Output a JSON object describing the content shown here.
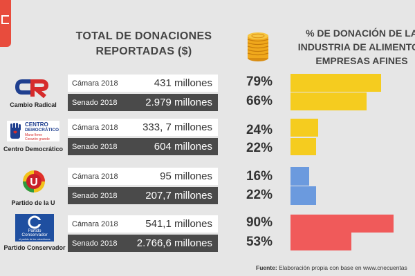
{
  "header": {
    "left_title_line1": "TOTAL DE DONACIONES",
    "left_title_line2": "REPORTADAS ($)",
    "right_title_line1": "% DE DONACIÓN DE LA",
    "right_title_line2": "INDUSTRIA DE ALIMENTOS",
    "right_title_line3": "EMPRESAS AFINES"
  },
  "parties": [
    {
      "name": "Cambio Radical",
      "logo_text": "CR"
    },
    {
      "name": "Centro Democrático",
      "logo_text1": "CENTRO",
      "logo_text2": "DEMOCRÁTICO",
      "logo_text3": "Mano firme",
      "logo_text4": "Corazón grande"
    },
    {
      "name": "Partido de la U",
      "logo_text": "U"
    },
    {
      "name": "Partido Conservador",
      "logo_text1": "Partido",
      "logo_text2": "Conservador",
      "logo_text3": "el partido de los colombianos"
    }
  ],
  "colors": {
    "yellow": "#f5cc1f",
    "blue": "#6b9ade",
    "red": "#f05a5a"
  },
  "chart_data": {
    "type": "bar",
    "orientation": "horizontal",
    "title": "% DE DONACIÓN DE LA INDUSTRIA DE ALIMENTOS EMPRESAS AFINES",
    "xlim": [
      0,
      100
    ],
    "rows": [
      {
        "party": "Cambio Radical",
        "chamber": "Cámara 2018",
        "amount": "431 millones",
        "pct": 79,
        "pct_label": "79%"
      },
      {
        "party": "Cambio Radical",
        "chamber": "Senado 2018",
        "amount": "2.979 millones",
        "pct": 66,
        "pct_label": "66%"
      },
      {
        "party": "Centro Democrático",
        "chamber": "Cámara 2018",
        "amount": "333, 7 millones",
        "pct": 24,
        "pct_label": "24%"
      },
      {
        "party": "Centro Democrático",
        "chamber": "Senado 2018",
        "amount": "604 millones",
        "pct": 22,
        "pct_label": "22%"
      },
      {
        "party": "Partido de la U",
        "chamber": "Cámara 2018",
        "amount": "95 millones",
        "pct": 16,
        "pct_label": "16%"
      },
      {
        "party": "Partido de la U",
        "chamber": "Senado 2018",
        "amount": "207,7 millones",
        "pct": 22,
        "pct_label": "22%"
      },
      {
        "party": "Partido Conservador",
        "chamber": "Cámara 2018",
        "amount": "541,1 millones",
        "pct": 90,
        "pct_label": "90%"
      },
      {
        "party": "Partido Conservador",
        "chamber": "Senado 2018",
        "amount": "2.766,6 millones",
        "pct": 53,
        "pct_label": "53%"
      }
    ]
  },
  "footer": {
    "label": "Fuente:",
    "text": "Elaboración propia con base en www.cnecuentas"
  }
}
